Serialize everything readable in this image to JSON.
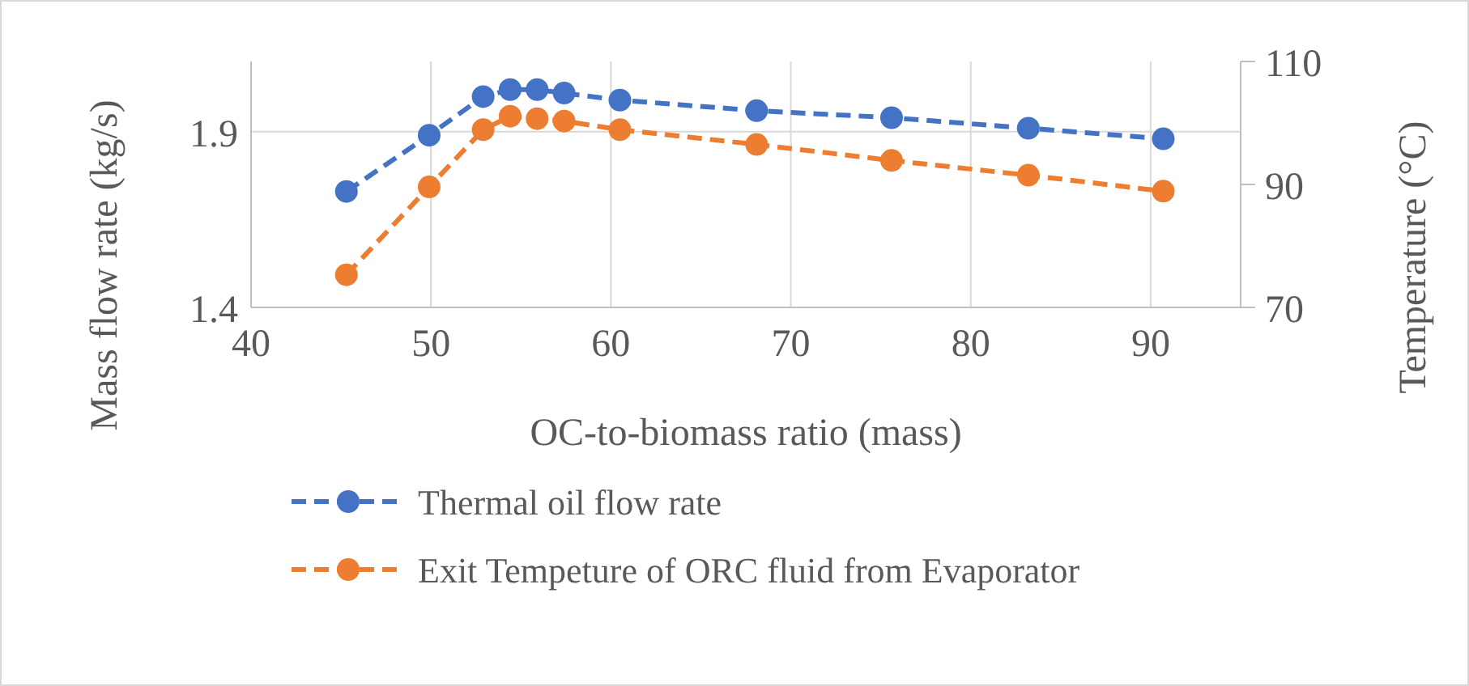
{
  "chart_data": {
    "type": "line",
    "xlabel": "OC-to-biomass ratio (mass)",
    "ylabel": "Mass flow rate (kg/s)",
    "y2label": "Temperature (°C)",
    "xlim": [
      40,
      95
    ],
    "xticks": [
      40,
      50,
      60,
      70,
      80,
      90
    ],
    "ylim": [
      1.4,
      2.1
    ],
    "yticks": [
      1.4,
      1.9
    ],
    "y2lim": [
      70,
      110
    ],
    "y2ticks": [
      70,
      90,
      110
    ],
    "grid": true,
    "legend": "bottom",
    "marker": "circle",
    "line_style": "dashed",
    "x": [
      45.3,
      49.9,
      52.9,
      54.4,
      55.9,
      57.4,
      60.5,
      68.1,
      75.6,
      83.2,
      90.7
    ],
    "series": [
      {
        "name": "Thermal oil flow rate",
        "color": "#4472c4",
        "values": [
          1.73,
          1.89,
          2.0,
          2.02,
          2.02,
          2.01,
          1.99,
          1.96,
          1.94,
          1.91,
          1.88
        ]
      },
      {
        "name": "Exit Tempeture of ORC fluid from Evaporator",
        "color": "#ed7d31",
        "axis": "y2",
        "values": [
          75.3,
          89.6,
          98.9,
          101.1,
          100.7,
          100.3,
          98.9,
          96.5,
          93.9,
          91.5,
          88.9
        ]
      }
    ]
  }
}
